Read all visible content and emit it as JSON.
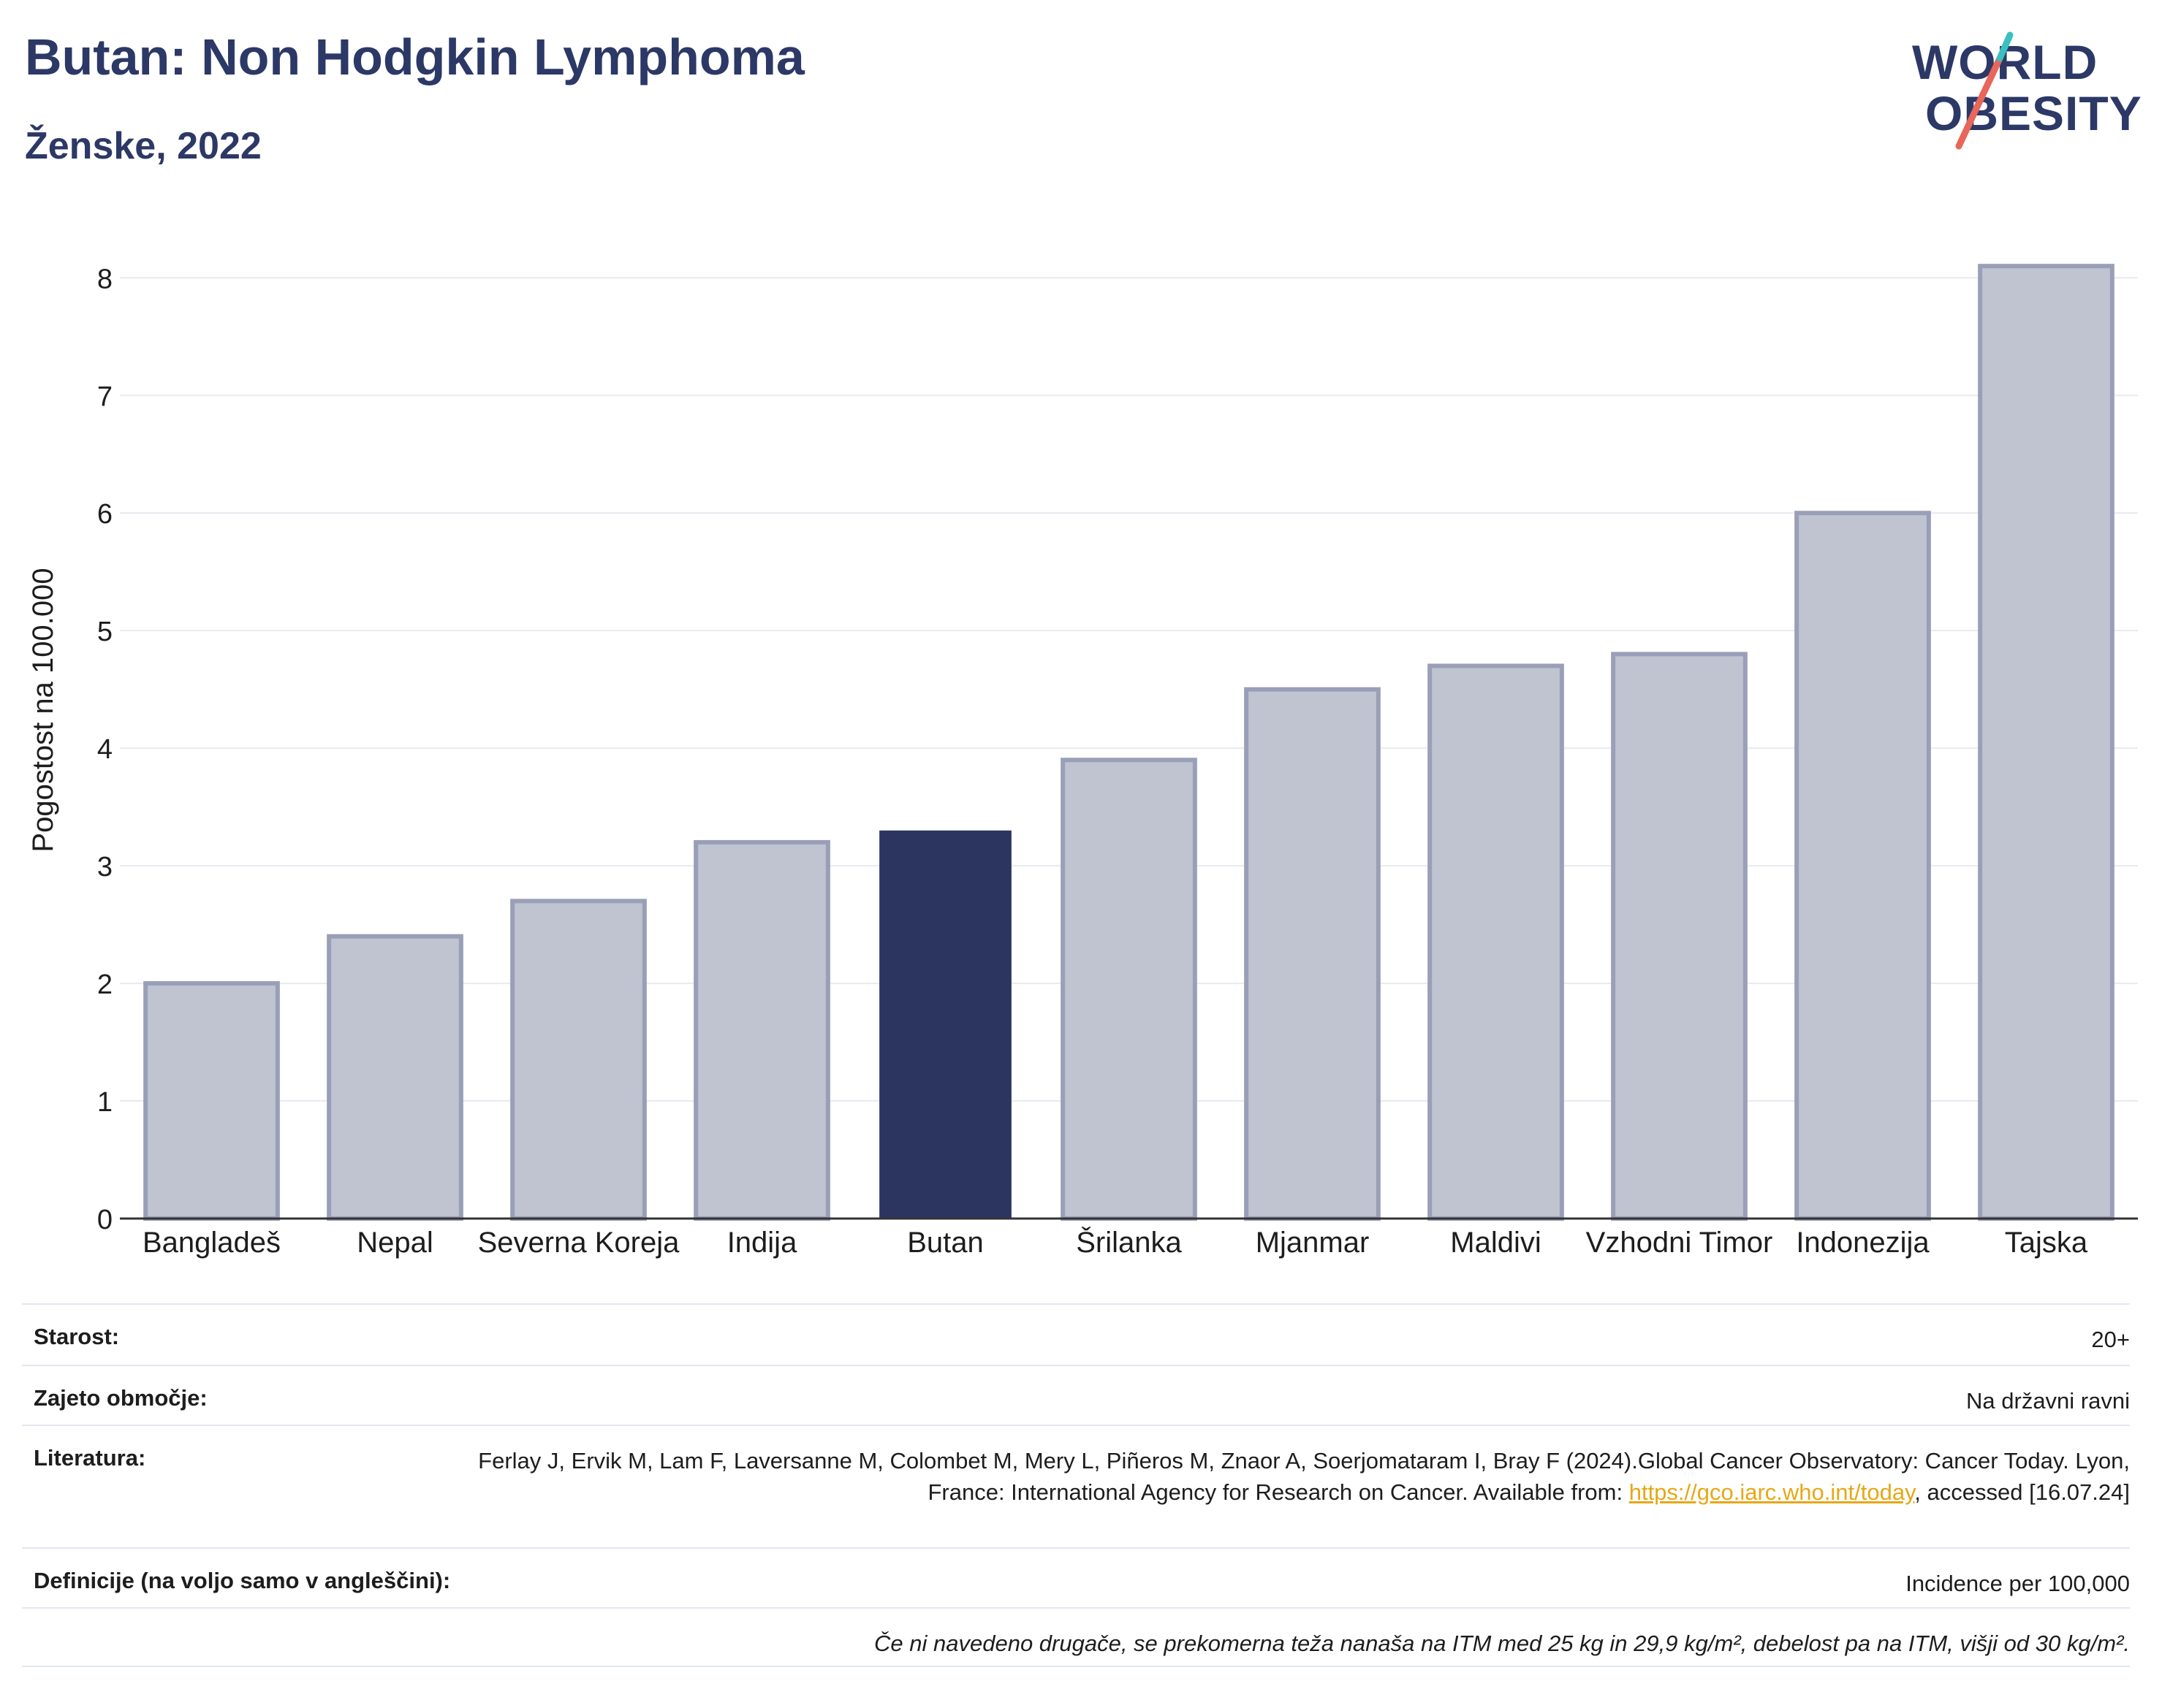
{
  "header": {
    "title": "Butan: Non Hodgkin Lymphoma",
    "subtitle": "Ženske, 2022"
  },
  "logo": {
    "line1": "WORLD",
    "line2": "OBESITY",
    "colors": {
      "teal": "#3bbfbf",
      "coral": "#e8665a",
      "navy": "#2c3866"
    }
  },
  "chart_data": {
    "type": "bar",
    "title": "Butan: Non Hodgkin Lymphoma",
    "subtitle": "Ženske, 2022",
    "xlabel": "",
    "ylabel": "Pogostost na 100.000",
    "categories": [
      "Bangladeš",
      "Nepal",
      "Severna Koreja",
      "Indija",
      "Butan",
      "Šrilanka",
      "Mjanmar",
      "Maldivi",
      "Vzhodni Timor",
      "Indonezija",
      "Tajska"
    ],
    "values": [
      2.0,
      2.4,
      2.7,
      3.2,
      3.3,
      3.9,
      4.5,
      4.7,
      4.8,
      6.0,
      8.1
    ],
    "highlight": "Butan",
    "ylim": [
      0,
      8.3
    ],
    "yticks": [
      0,
      1,
      2,
      3,
      4,
      5,
      6,
      7,
      8
    ],
    "grid": true,
    "colors": {
      "bar": "#c0c3d0",
      "bar_border": "#9a9fb8",
      "highlight": "#2b3560",
      "grid": "#e8eaf0",
      "axis": "#333333"
    }
  },
  "table": {
    "age_label": "Starost:",
    "age_value": "20+",
    "coverage_label": "Zajeto območje:",
    "coverage_value": "Na državni ravni",
    "literature_label": "Literatura:",
    "literature_text": "Ferlay J, Ervik M, Lam F, Laversanne M, Colombet M, Mery L, Piñeros M, Znaor A, Soerjomataram I, Bray F (2024).Global Cancer Observatory: Cancer Today. Lyon, France: International Agency for Research on Cancer. Available from:",
    "literature_link": "https://gco.iarc.who.int/today",
    "literature_tail": ", accessed [16.07.24]",
    "definitions_label": "Definicije (na voljo samo v angleščini):",
    "definitions_value": "Incidence per 100,000",
    "note": "Če ni navedeno drugače, se prekomerna teža nanaša na ITM med 25 kg in 29,9 kg/m², debelost pa na ITM, višji od 30 kg/m²."
  }
}
